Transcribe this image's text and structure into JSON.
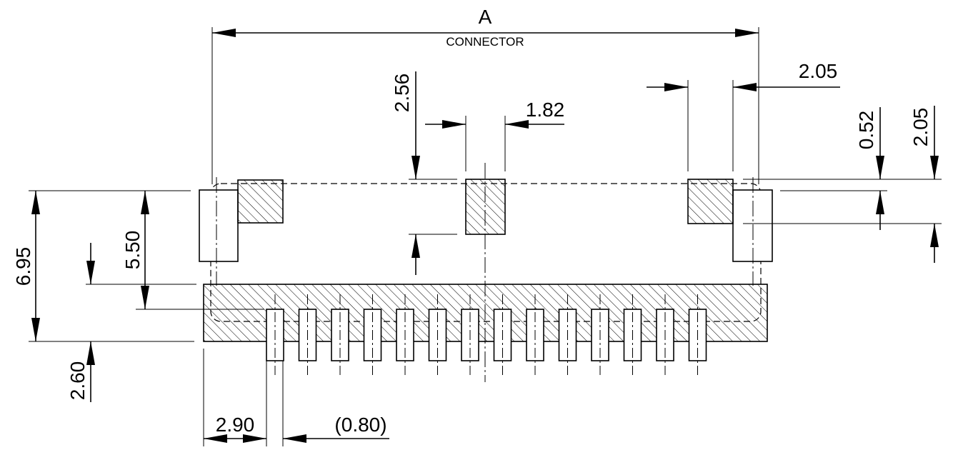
{
  "drawing": {
    "overall_label": "A",
    "overall_sublabel": "CONNECTOR",
    "dims": {
      "height_total": "6.95",
      "height_inner": "5.50",
      "bottom_offset": "2.60",
      "left_offset": "2.90",
      "pitch": "(0.80)",
      "center_pad_height": "2.56",
      "center_pad_width": "1.82",
      "right_pad_width": "2.05",
      "right_step": "0.52",
      "right_height": "2.05"
    },
    "pin_count": 14
  }
}
